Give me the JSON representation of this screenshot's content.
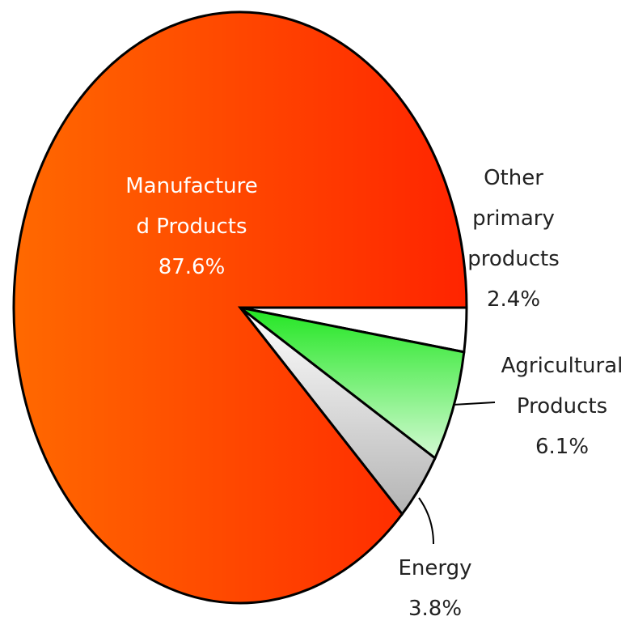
{
  "chart_data": {
    "type": "pie",
    "categories": [
      "Other primary products",
      "Agricultural Products",
      "Energy",
      "Manufactured Products"
    ],
    "values": [
      2.4,
      6.1,
      3.8,
      87.6
    ],
    "value_labels": [
      "2.4%",
      "6.1%",
      "3.8%",
      "87.6%"
    ],
    "colors": [
      "#ffffff",
      "#22e622",
      "#b4b4b4",
      "#ff3300"
    ],
    "start_angle": 0,
    "direction": "clockwise"
  }
}
